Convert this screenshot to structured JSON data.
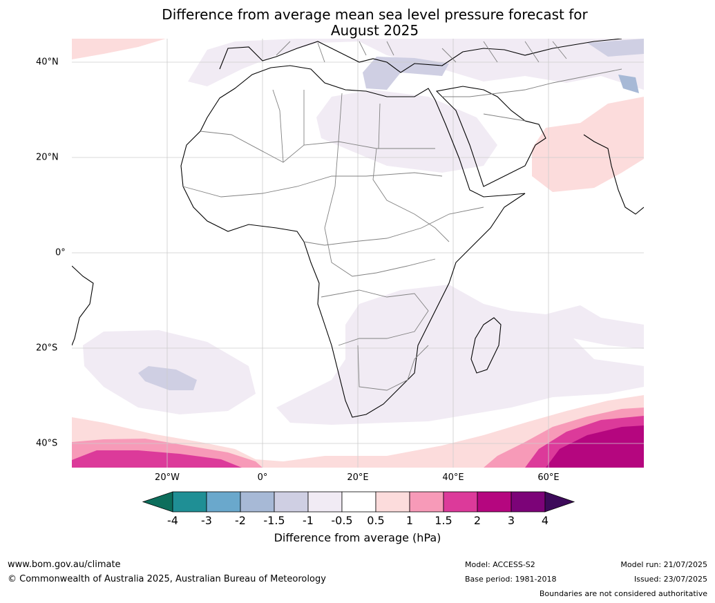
{
  "title_line1": "Difference from average mean sea level pressure forecast for",
  "title_line2": "August 2025",
  "map": {
    "region": "Africa",
    "lon_range": [
      -40,
      80
    ],
    "lat_range": [
      -45,
      45
    ],
    "lon_ticks": [
      "20°W",
      "0°",
      "20°E",
      "40°E",
      "60°E"
    ],
    "lat_ticks": [
      "40°N",
      "20°N",
      "0°",
      "20°S",
      "40°S"
    ]
  },
  "colorbar": {
    "ticks": [
      "-4",
      "-3",
      "-2",
      "-1.5",
      "-1",
      "-0.5",
      "0.5",
      "1",
      "1.5",
      "2",
      "3",
      "4"
    ],
    "colors": {
      "below_min": "#0d6e5c",
      "lt_-3": "#1f8f95",
      "-3_-2": "#6aa8cc",
      "-2_-1.5": "#a7b9d6",
      "-1.5_-1": "#cfcfe3",
      "-1_-0.5": "#f1ebf4",
      "-0.5_0.5": "#ffffff",
      "0.5_1": "#fcdcdc",
      "1_1.5": "#f79ab8",
      "1.5_2": "#dc3a9a",
      "2_3": "#b5067f",
      "3_4": "#7c0378",
      "above_max": "#3d0a5a"
    },
    "label": "Difference from average (hPa)"
  },
  "footer": {
    "website": "www.bom.gov.au/climate",
    "copyright": "© Commonwealth of Australia 2025, Australian Bureau of Meteorology",
    "model": "Model: ACCESS-S2",
    "base_period": "Base period: 1981-2018",
    "model_run": "Model run: 21/07/2025",
    "issued": "Issued: 23/07/2025",
    "disclaimer": "Boundaries are not considered authoritative"
  }
}
